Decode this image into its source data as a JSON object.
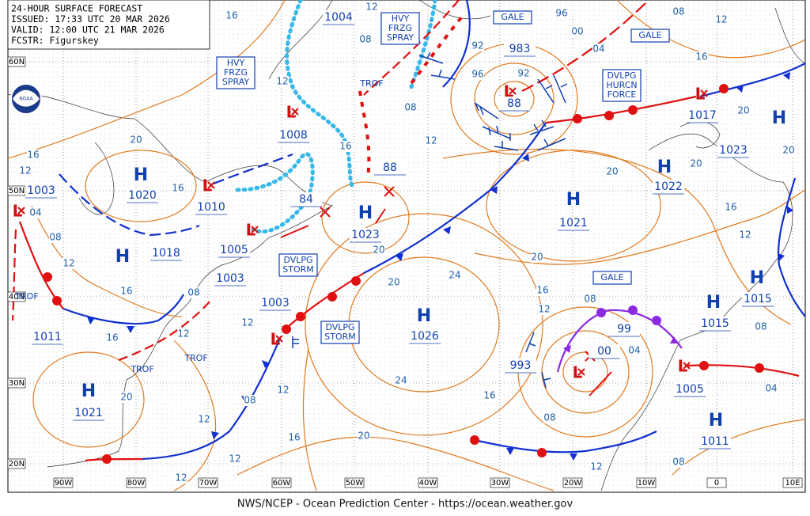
{
  "header": {
    "lines": [
      "24-HOUR SURFACE FORECAST",
      "ISSUED: 17:33 UTC 20 MAR 2026",
      "VALID: 12:00 UTC 21 MAR 2026",
      "FCSTR: Figurskey"
    ]
  },
  "footer": "NWS/NCEP - Ocean Prediction Center - https://ocean.weather.gov",
  "lat_labels": [
    "60N",
    "50N",
    "40N",
    "30N",
    "20N"
  ],
  "lon_labels": [
    "90W",
    "80W",
    "70W",
    "60W",
    "50W",
    "40W",
    "30W",
    "20W",
    "10W",
    "0",
    "10E"
  ],
  "systems": [
    {
      "symbol": "H",
      "pressure": "1020"
    },
    {
      "symbol": "H",
      "pressure": "1018"
    },
    {
      "symbol": "H",
      "pressure": "1023"
    },
    {
      "symbol": "H",
      "pressure": "1026"
    },
    {
      "symbol": "H",
      "pressure": "1021"
    },
    {
      "symbol": "H",
      "pressure": "1022"
    },
    {
      "symbol": "H",
      "pressure": "1023"
    },
    {
      "symbol": "H",
      "pressure": "1021"
    },
    {
      "symbol": "H",
      "pressure": "1015"
    },
    {
      "symbol": "H",
      "pressure": "1015"
    },
    {
      "symbol": "H",
      "pressure": "1011"
    },
    {
      "symbol": "L",
      "pressure": "1003"
    },
    {
      "symbol": "L",
      "pressure": "1010"
    },
    {
      "symbol": "L",
      "pressure": "1005"
    },
    {
      "symbol": "L",
      "pressure": "1008"
    },
    {
      "symbol": "L",
      "pressure": "983"
    },
    {
      "symbol": "L",
      "pressure": "1017"
    },
    {
      "symbol": "L",
      "pressure": "1003"
    },
    {
      "symbol": "L",
      "pressure": "993"
    },
    {
      "symbol": "L",
      "pressure": "1005"
    }
  ],
  "pressure_labels": [
    "1003",
    "1004",
    "1011",
    "99",
    "84",
    "88",
    "00",
    "88"
  ],
  "boxes": [
    {
      "lines": [
        "HVY",
        "FRZG",
        "SPRAY"
      ]
    },
    {
      "lines": [
        "HVY",
        "FRZG",
        "SPRAY"
      ]
    },
    {
      "lines": [
        "GALE"
      ]
    },
    {
      "lines": [
        "GALE"
      ]
    },
    {
      "lines": [
        "DVLPG",
        "HURCN",
        "FORCE"
      ]
    },
    {
      "lines": [
        "DVLPG",
        "STORM"
      ]
    },
    {
      "lines": [
        "DVLPG",
        "STORM"
      ]
    },
    {
      "lines": [
        "GALE"
      ]
    }
  ],
  "trof_labels": [
    "TROF",
    "TROF",
    "TROF",
    "TROF"
  ],
  "isobar_labels": [
    "16",
    "12",
    "08",
    "96",
    "00",
    "04",
    "08",
    "12",
    "16",
    "20",
    "20",
    "20",
    "16",
    "12",
    "08",
    "04",
    "08",
    "12",
    "16",
    "20",
    "24",
    "24",
    "20",
    "20",
    "20",
    "16",
    "12",
    "08",
    "04",
    "08",
    "20",
    "12",
    "08",
    "92",
    "96",
    "92",
    "16",
    "12",
    "16",
    "12",
    "04",
    "08",
    "12",
    "16",
    "16",
    "20",
    "08",
    "12",
    "16",
    "12",
    "12",
    "08",
    "20",
    "12",
    "12",
    "12",
    "16"
  ]
}
